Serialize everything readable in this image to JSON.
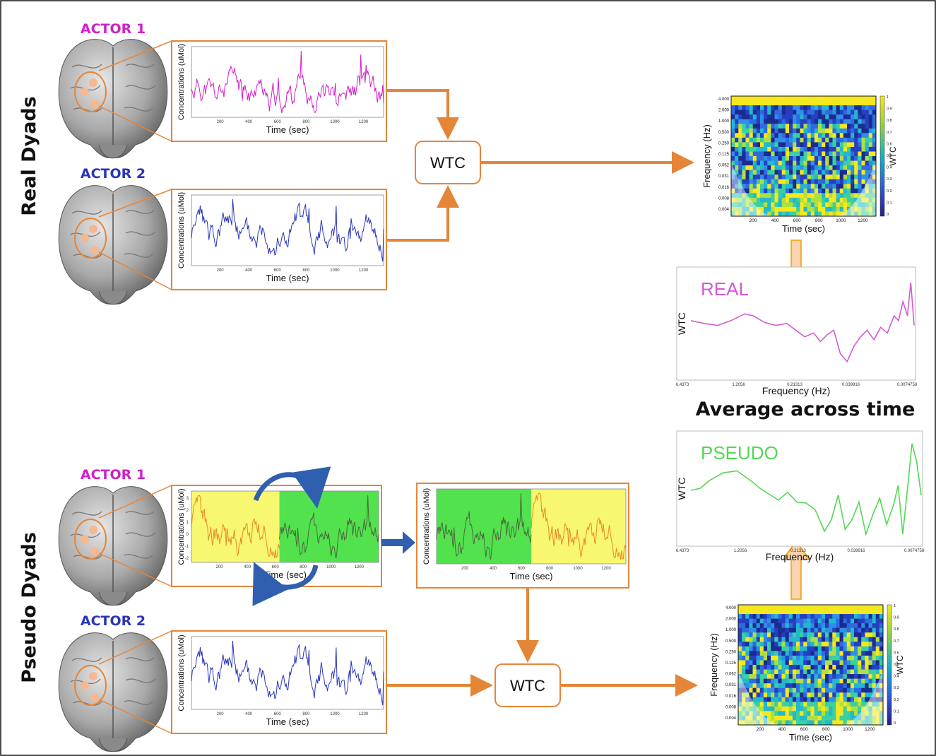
{
  "section_labels": {
    "real": "Real Dyads",
    "pseudo": "Pseudo Dyads"
  },
  "actors": {
    "real_actor1": "ACTOR 1",
    "real_actor2": "ACTOR 2",
    "pseudo_actor1": "ACTOR 1",
    "pseudo_actor2": "ACTOR 2"
  },
  "timeseries": {
    "ylabel": "Concentrations (uMol)",
    "xlabel": "Time (sec)",
    "xticks": [
      "200",
      "400",
      "600",
      "800",
      "1000",
      "1200"
    ],
    "yticks_pseudo": [
      "3",
      "2",
      "1",
      "0",
      "-1",
      "-2"
    ]
  },
  "wtc_box": "WTC",
  "wtc_maps": {
    "ylabel": "Frequency (Hz)",
    "xlabel": "Time (sec)",
    "colorbar_label": "WTC",
    "freq_ticks": [
      "4.000",
      "2.000",
      "1.000",
      "0.500",
      "0.250",
      "0.125",
      "0.062",
      "0.031",
      "0.016",
      "0.008",
      "0.004"
    ],
    "time_ticks": [
      "200",
      "400",
      "600",
      "800",
      "1000",
      "1200"
    ],
    "colorbar_ticks": [
      "1",
      "0.9",
      "0.8",
      "0.7",
      "0.6",
      "0.5",
      "0.4",
      "0.3",
      "0.2",
      "0.1",
      "0"
    ]
  },
  "avg_plots": {
    "real": {
      "title": "REAL",
      "ylabel": "WTC",
      "xlabel": "Frequency (Hz)",
      "xticks": [
        "6.4373",
        "1.2056",
        "0.21313",
        "0.039916",
        "0.0074758"
      ]
    },
    "pseudo": {
      "title": "PSEUDO",
      "ylabel": "WTC",
      "xlabel": "Frequency (Hz)",
      "xticks": [
        "6.4373",
        "1.2056",
        "0.21313",
        "0.039916",
        "0.0074758"
      ]
    }
  },
  "average_label": "Average across time",
  "colors": {
    "actor1": "#d020c8",
    "actor2": "#2a36b8",
    "real_line": "#d45ad4",
    "pseudo_line": "#52d852",
    "orange": "#e58538",
    "swap_arrow": "#2f5fae",
    "seg_yellow": "#f8f870",
    "seg_green": "#52e24e"
  }
}
